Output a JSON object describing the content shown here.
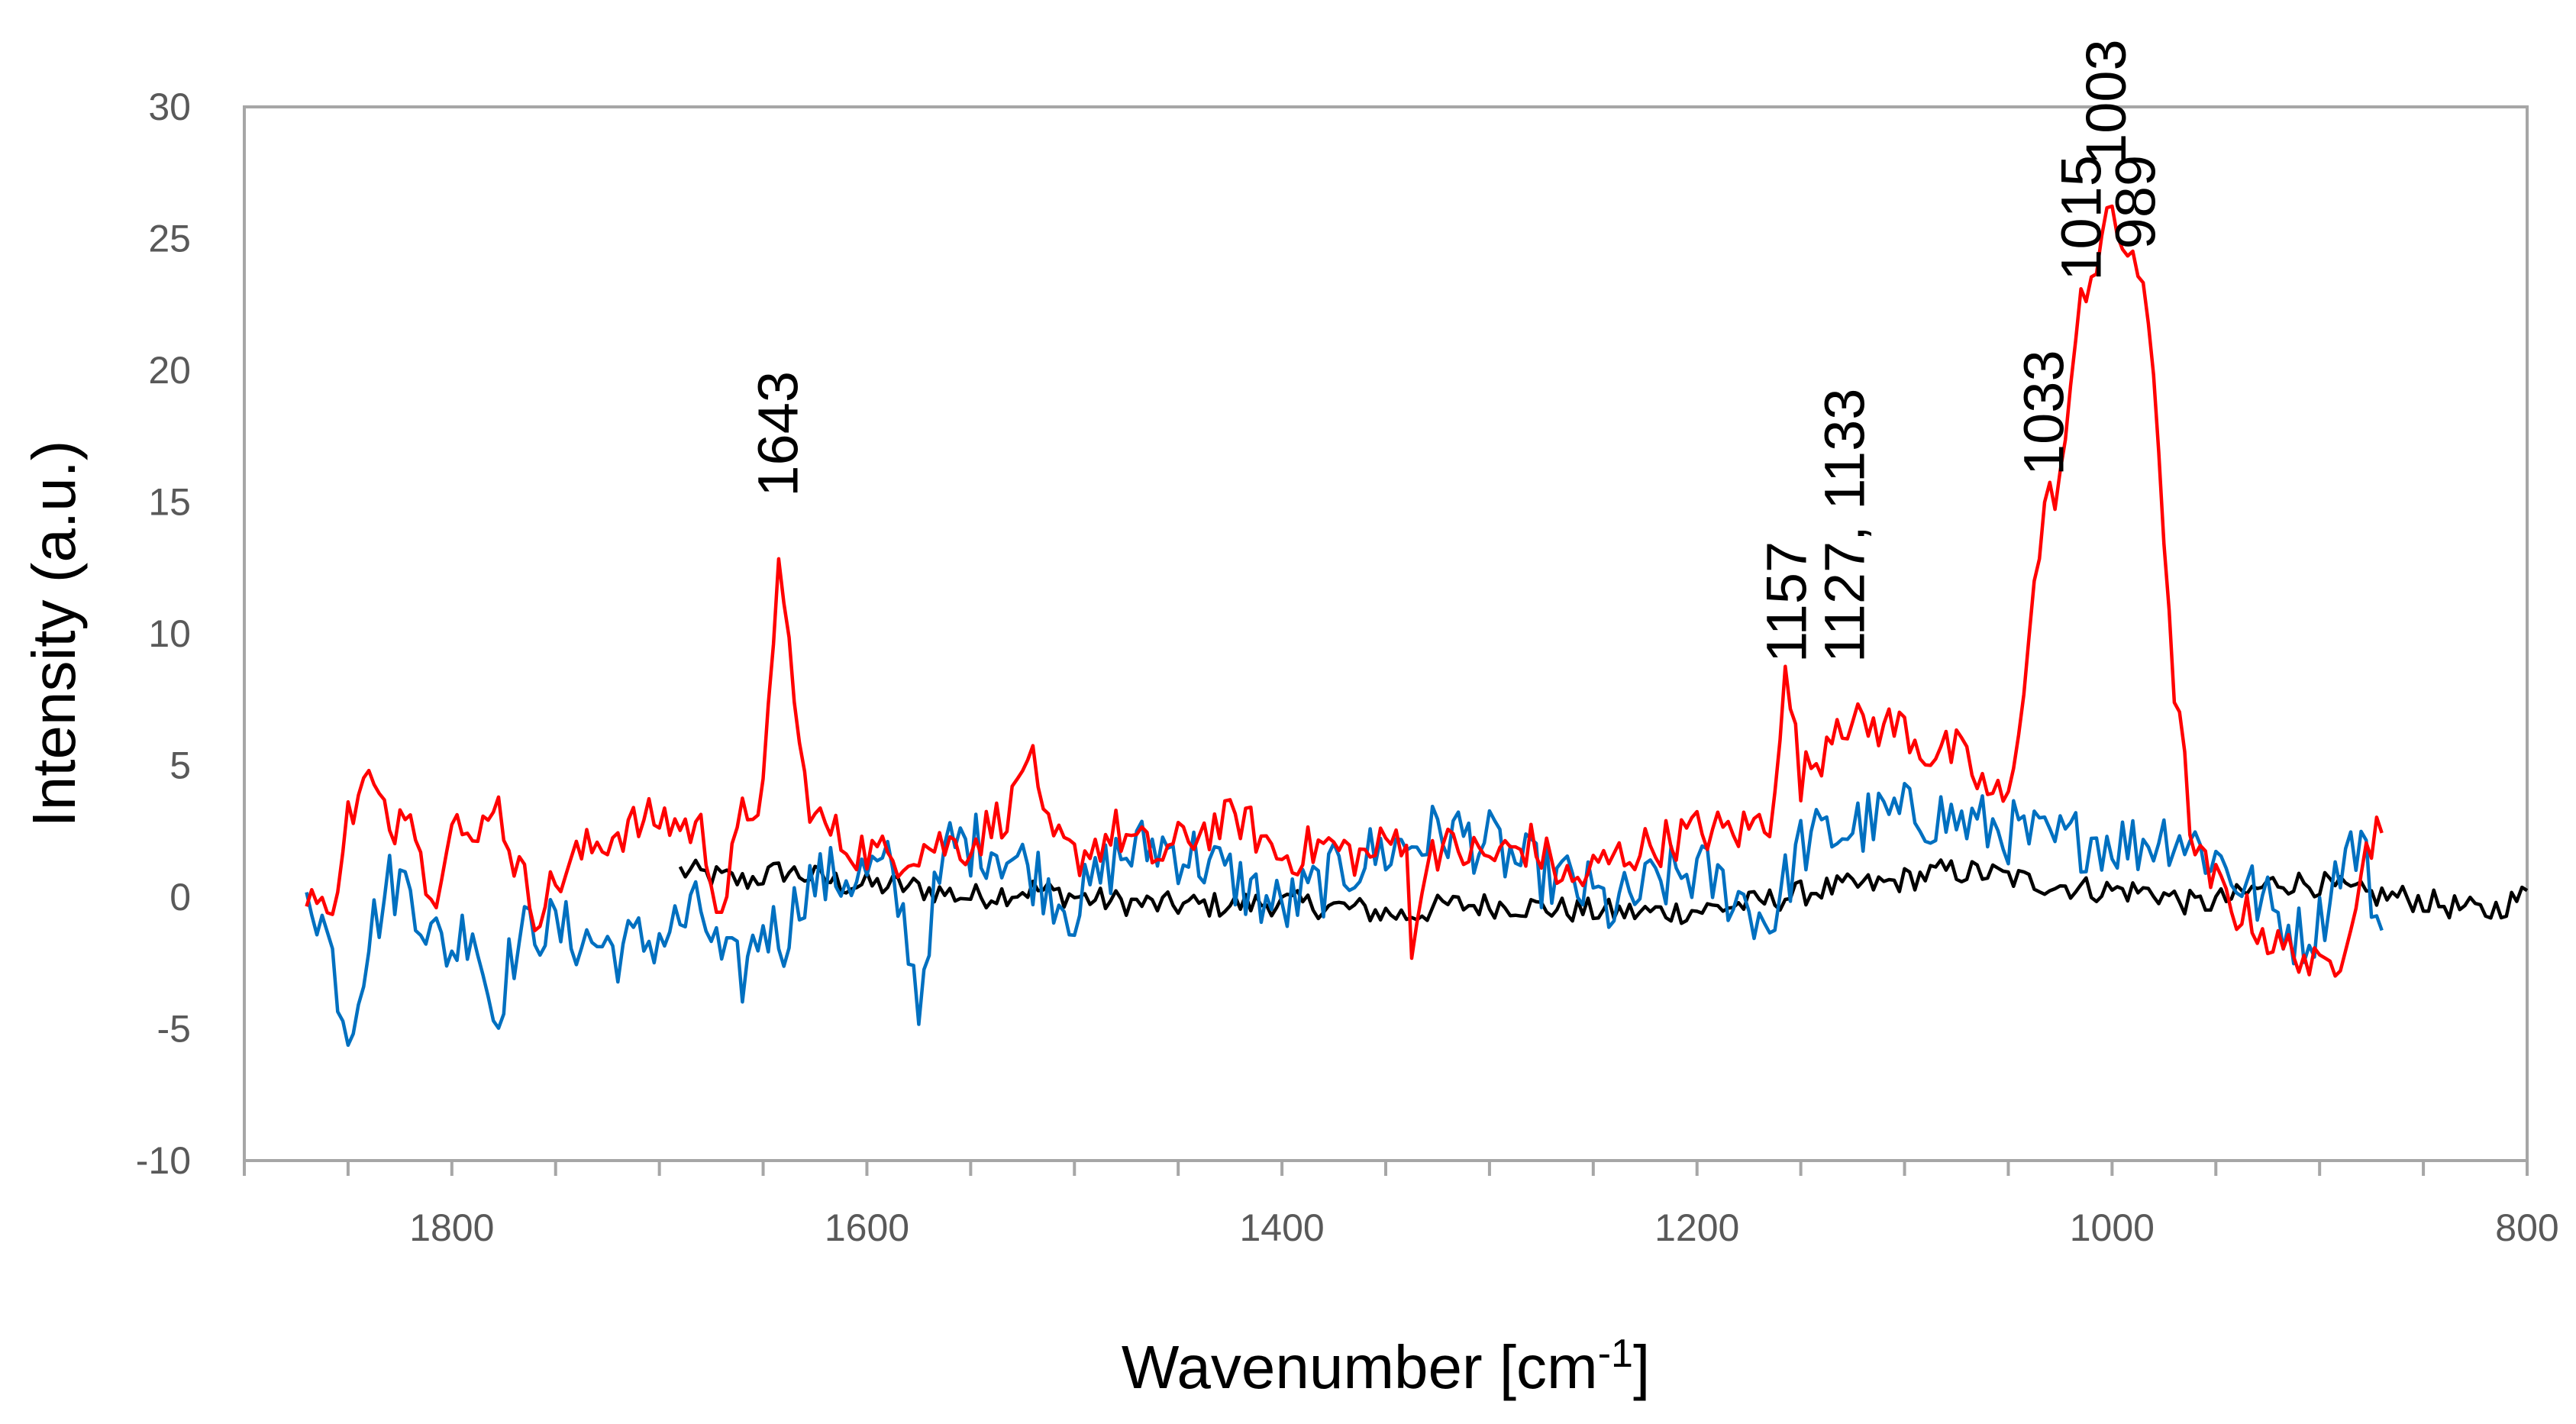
{
  "chart_data": {
    "type": "line",
    "title": "",
    "xlabel": "Wavenumber [cm",
    "xlabel_sup": "-1",
    "xlabel_end": "]",
    "ylabel": "Intensity (a.u.)",
    "xlim": [
      1900,
      800
    ],
    "xreversed": true,
    "ylim": [
      -10,
      30
    ],
    "grid": false,
    "legend": "none",
    "x_ticks": [
      1800,
      1600,
      1400,
      1200,
      1000,
      800
    ],
    "y_ticks": [
      30,
      25,
      20,
      15,
      10,
      5,
      0,
      -5,
      -10
    ],
    "x_tick_labels": [
      "1800",
      "1600",
      "1400",
      "1200",
      "1000",
      "800"
    ],
    "y_tick_labels": [
      "30",
      "25",
      "20",
      "15",
      "10",
      "5",
      "0",
      "-5",
      "-10"
    ],
    "series": [
      {
        "name": "black",
        "color": "#000000",
        "x_range": [
          1690,
          800
        ],
        "points": [
          [
            1690,
            1.0
          ],
          [
            1660,
            0.6
          ],
          [
            1640,
            1.0
          ],
          [
            1610,
            0.5
          ],
          [
            1580,
            0.4
          ],
          [
            1550,
            0.0
          ],
          [
            1520,
            0.3
          ],
          [
            1490,
            -0.1
          ],
          [
            1460,
            -0.3
          ],
          [
            1430,
            -0.3
          ],
          [
            1400,
            -0.2
          ],
          [
            1370,
            -0.4
          ],
          [
            1340,
            -0.7
          ],
          [
            1320,
            -0.3
          ],
          [
            1290,
            -0.3
          ],
          [
            1260,
            -0.5
          ],
          [
            1230,
            -0.6
          ],
          [
            1200,
            -0.5
          ],
          [
            1170,
            -0.2
          ],
          [
            1140,
            0.3
          ],
          [
            1110,
            0.5
          ],
          [
            1080,
            1.0
          ],
          [
            1060,
            0.9
          ],
          [
            1040,
            0.6
          ],
          [
            1010,
            0.3
          ],
          [
            980,
            0.2
          ],
          [
            960,
            -0.3
          ],
          [
            940,
            0.0
          ],
          [
            920,
            0.6
          ],
          [
            900,
            0.5
          ],
          [
            880,
            0.1
          ],
          [
            860,
            0.0
          ],
          [
            840,
            -0.3
          ],
          [
            820,
            -0.6
          ],
          [
            800,
            0.1
          ]
        ],
        "noise": 0.5
      },
      {
        "name": "blue",
        "color": "#0070C0",
        "x_range": [
          1870,
          870
        ],
        "points": [
          [
            1870,
            0.8
          ],
          [
            1860,
            -1.5
          ],
          [
            1850,
            -5.0
          ],
          [
            1840,
            -1.5
          ],
          [
            1830,
            0.5
          ],
          [
            1820,
            0.5
          ],
          [
            1810,
            -1.5
          ],
          [
            1800,
            -2.0
          ],
          [
            1790,
            -0.8
          ],
          [
            1780,
            -4.5
          ],
          [
            1770,
            -2.0
          ],
          [
            1760,
            -1.0
          ],
          [
            1740,
            -1.5
          ],
          [
            1720,
            -2.0
          ],
          [
            1700,
            -1.5
          ],
          [
            1680,
            -0.5
          ],
          [
            1670,
            -2.5
          ],
          [
            1660,
            -3.0
          ],
          [
            1650,
            -1.0
          ],
          [
            1640,
            -1.5
          ],
          [
            1630,
            0.5
          ],
          [
            1610,
            0.8
          ],
          [
            1590,
            1.0
          ],
          [
            1580,
            -1.5
          ],
          [
            1575,
            -4.2
          ],
          [
            1570,
            -1.0
          ],
          [
            1560,
            2.0
          ],
          [
            1540,
            2.0
          ],
          [
            1520,
            1.0
          ],
          [
            1500,
            -0.5
          ],
          [
            1480,
            1.5
          ],
          [
            1460,
            2.0
          ],
          [
            1440,
            1.5
          ],
          [
            1420,
            0.5
          ],
          [
            1400,
            -0.5
          ],
          [
            1380,
            0.5
          ],
          [
            1360,
            1.5
          ],
          [
            1340,
            2.0
          ],
          [
            1320,
            2.5
          ],
          [
            1300,
            2.0
          ],
          [
            1280,
            1.0
          ],
          [
            1260,
            0.5
          ],
          [
            1240,
            -0.5
          ],
          [
            1220,
            0.5
          ],
          [
            1200,
            1.0
          ],
          [
            1180,
            0.0
          ],
          [
            1165,
            -1.0
          ],
          [
            1150,
            2.0
          ],
          [
            1130,
            2.5
          ],
          [
            1110,
            3.0
          ],
          [
            1090,
            3.2
          ],
          [
            1070,
            2.8
          ],
          [
            1050,
            2.5
          ],
          [
            1030,
            2.0
          ],
          [
            1010,
            2.3
          ],
          [
            990,
            2.0
          ],
          [
            970,
            2.5
          ],
          [
            950,
            1.5
          ],
          [
            930,
            0.0
          ],
          [
            910,
            -1.5
          ],
          [
            900,
            -1.0
          ],
          [
            890,
            1.5
          ],
          [
            880,
            2.0
          ],
          [
            870,
            -1.5
          ]
        ],
        "noise": 1.3
      },
      {
        "name": "red",
        "color": "#FF0000",
        "x_range": [
          1870,
          870
        ],
        "points": [
          [
            1870,
            0.5
          ],
          [
            1860,
            -1.0
          ],
          [
            1850,
            3.0
          ],
          [
            1840,
            4.5
          ],
          [
            1830,
            2.5
          ],
          [
            1820,
            4.0
          ],
          [
            1810,
            -0.5
          ],
          [
            1800,
            3.5
          ],
          [
            1790,
            1.5
          ],
          [
            1780,
            4.0
          ],
          [
            1770,
            1.5
          ],
          [
            1760,
            -0.5
          ],
          [
            1740,
            1.5
          ],
          [
            1720,
            2.5
          ],
          [
            1700,
            3.0
          ],
          [
            1680,
            2.5
          ],
          [
            1670,
            -0.5
          ],
          [
            1660,
            3.0
          ],
          [
            1650,
            4.0
          ],
          [
            1645,
            9.0
          ],
          [
            1642,
            13.3
          ],
          [
            1638,
            10.0
          ],
          [
            1632,
            5.0
          ],
          [
            1625,
            3.0
          ],
          [
            1610,
            2.0
          ],
          [
            1590,
            1.5
          ],
          [
            1570,
            2.0
          ],
          [
            1550,
            2.0
          ],
          [
            1530,
            3.5
          ],
          [
            1522,
            5.8
          ],
          [
            1515,
            2.5
          ],
          [
            1500,
            1.5
          ],
          [
            1480,
            2.5
          ],
          [
            1460,
            1.5
          ],
          [
            1440,
            2.5
          ],
          [
            1420,
            3.0
          ],
          [
            1400,
            1.5
          ],
          [
            1380,
            2.0
          ],
          [
            1360,
            1.5
          ],
          [
            1340,
            2.5
          ],
          [
            1337,
            -3.0
          ],
          [
            1330,
            2.0
          ],
          [
            1300,
            1.5
          ],
          [
            1280,
            2.0
          ],
          [
            1260,
            0.5
          ],
          [
            1240,
            1.5
          ],
          [
            1220,
            2.0
          ],
          [
            1200,
            2.5
          ],
          [
            1180,
            2.5
          ],
          [
            1165,
            3.0
          ],
          [
            1157,
            8.5
          ],
          [
            1150,
            4.5
          ],
          [
            1140,
            5.5
          ],
          [
            1133,
            7.0
          ],
          [
            1125,
            6.5
          ],
          [
            1110,
            6.5
          ],
          [
            1100,
            6.5
          ],
          [
            1090,
            5.5
          ],
          [
            1075,
            5.5
          ],
          [
            1060,
            4.0
          ],
          [
            1050,
            3.5
          ],
          [
            1040,
            10.0
          ],
          [
            1033,
            14.5
          ],
          [
            1025,
            16.0
          ],
          [
            1018,
            20.0
          ],
          [
            1015,
            23.0
          ],
          [
            1008,
            24.0
          ],
          [
            1003,
            26.0
          ],
          [
            998,
            25.0
          ],
          [
            989,
            24.5
          ],
          [
            980,
            20.0
          ],
          [
            970,
            8.0
          ],
          [
            960,
            1.5
          ],
          [
            950,
            0.5
          ],
          [
            940,
            -0.5
          ],
          [
            930,
            -1.0
          ],
          [
            920,
            -2.0
          ],
          [
            910,
            -2.0
          ],
          [
            900,
            -3.0
          ],
          [
            890,
            -2.0
          ],
          [
            880,
            1.0
          ],
          [
            870,
            3.3
          ]
        ],
        "noise": 0.9
      }
    ],
    "annotations": [
      {
        "text": "1643",
        "x": 1643,
        "y": 15.2
      },
      {
        "text": "1157",
        "x": 1157,
        "y": 8.9
      },
      {
        "text": "1127, 1133",
        "x": 1129,
        "y": 8.9
      },
      {
        "text": "1033",
        "x": 1033,
        "y": 16.0
      },
      {
        "text": "1015",
        "x": 1015,
        "y": 23.4
      },
      {
        "text": "1003",
        "x": 1003,
        "y": 27.8
      },
      {
        "text": "989",
        "x": 989,
        "y": 24.6
      }
    ]
  }
}
